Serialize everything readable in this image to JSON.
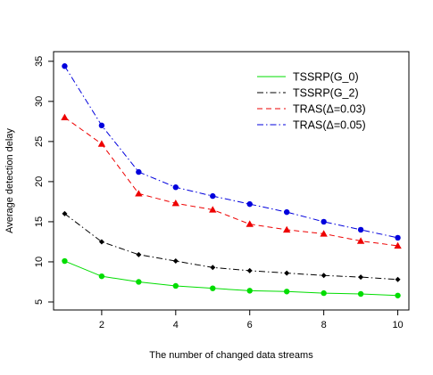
{
  "chart_data": {
    "type": "line",
    "title": "",
    "xlabel": "The number of changed data streams",
    "ylabel": "Average detection delay",
    "x": [
      1,
      2,
      3,
      4,
      5,
      6,
      7,
      8,
      9,
      10
    ],
    "xlim": [
      0.7,
      10.3
    ],
    "ylim": [
      4.0,
      36.2
    ],
    "xticks": [
      2,
      4,
      6,
      8,
      10
    ],
    "yticks": [
      5,
      10,
      15,
      20,
      25,
      30,
      35
    ],
    "grid": false,
    "legend_position": "top-right",
    "series": [
      {
        "name": "TSSRP(G_0)",
        "color": "#00dd00",
        "line_style": "solid",
        "marker": "circle",
        "values": [
          10.1,
          8.2,
          7.5,
          7.0,
          6.7,
          6.4,
          6.3,
          6.1,
          6.0,
          5.8
        ]
      },
      {
        "name": "TSSRP(G_2)",
        "color": "#000000",
        "line_style": "dashdot",
        "marker": "diamond",
        "values": [
          16.0,
          12.5,
          10.9,
          10.1,
          9.3,
          8.9,
          8.6,
          8.3,
          8.1,
          7.8
        ]
      },
      {
        "name": "TRAS(Δ=0.03)",
        "color": "#ee0000",
        "line_style": "dashed",
        "marker": "triangle",
        "values": [
          28.0,
          24.7,
          18.5,
          17.3,
          16.5,
          14.7,
          14.0,
          13.5,
          12.6,
          12.0
        ]
      },
      {
        "name": "TRAS(Δ=0.05)",
        "color": "#0000dd",
        "line_style": "dashdot",
        "marker": "circle",
        "values": [
          34.4,
          27.0,
          21.2,
          19.3,
          18.2,
          17.2,
          16.2,
          15.0,
          14.0,
          13.0
        ]
      }
    ]
  }
}
